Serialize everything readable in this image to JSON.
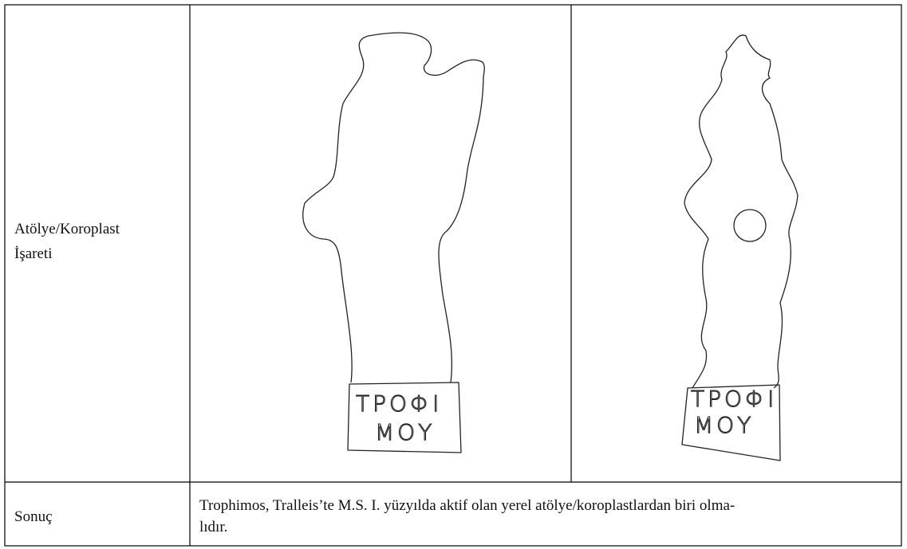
{
  "rows": [
    {
      "label": [
        "Atölye/Koroplast",
        "İşareti"
      ],
      "figures": [
        {
          "inscription": [
            "ΤΡΟΦΙ",
            "ΜΟΥ"
          ]
        },
        {
          "inscription": [
            "ΤΡΟΦΙ",
            "ΜΟΥ"
          ]
        }
      ]
    },
    {
      "label": [
        "Sonuç"
      ],
      "text": [
        "Trophimos, Tralleis’te M.S. I. yüzyılda aktif olan yerel atölye/koroplastlardan biri olma-",
        "lıdır."
      ]
    }
  ]
}
